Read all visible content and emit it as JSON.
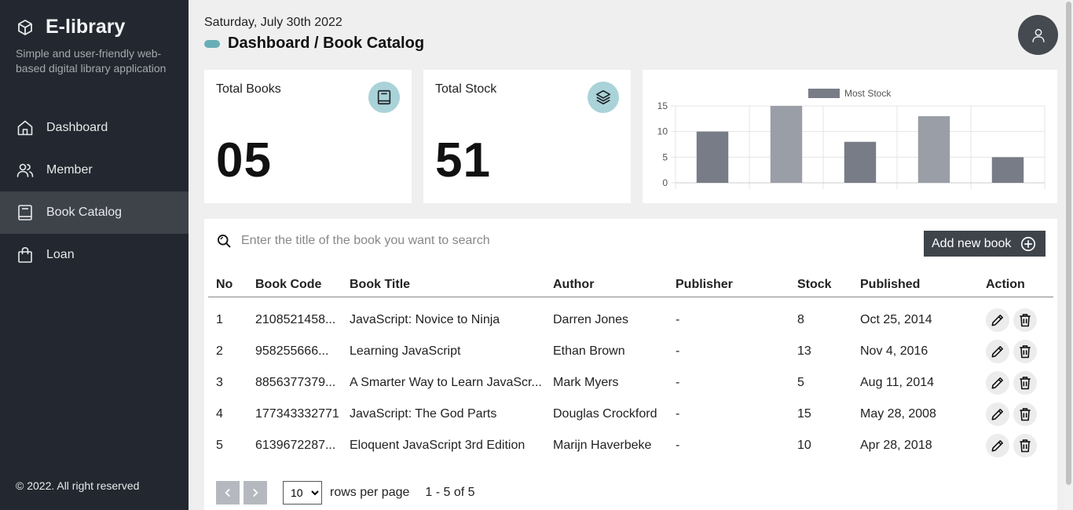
{
  "app": {
    "name": "E-library",
    "subtitle": "Simple and user-friendly web-based digital library application",
    "footer": "© 2022. All right reserved"
  },
  "sidebar": {
    "items": [
      {
        "label": "Dashboard",
        "icon": "home-icon",
        "active": false
      },
      {
        "label": "Member",
        "icon": "users-icon",
        "active": false
      },
      {
        "label": "Book Catalog",
        "icon": "book-icon",
        "active": true
      },
      {
        "label": "Loan",
        "icon": "bag-icon",
        "active": false
      }
    ]
  },
  "header": {
    "date": "Saturday, July 30th 2022",
    "breadcrumb": "Dashboard / Book Catalog"
  },
  "cards": {
    "total_books": {
      "label": "Total Books",
      "value": "05"
    },
    "total_stock": {
      "label": "Total Stock",
      "value": "51"
    }
  },
  "chart_data": {
    "type": "bar",
    "categories": [
      "",
      "",
      "",
      "",
      ""
    ],
    "series": [
      {
        "name": "Most Stock",
        "values": [
          10,
          15,
          8,
          13,
          5
        ]
      }
    ],
    "ylim": [
      0,
      15
    ],
    "yticks": [
      0,
      5,
      10,
      15
    ],
    "legend": "top",
    "colors": [
      "#787c87",
      "#9a9ea6",
      "#787c87",
      "#9a9ea6",
      "#787c87"
    ],
    "grid": true
  },
  "search": {
    "placeholder": "Enter the title of the book you want to search"
  },
  "toolbar": {
    "add_label": "Add new book"
  },
  "table": {
    "headers": {
      "no": "No",
      "code": "Book Code",
      "title": "Book Title",
      "author": "Author",
      "publisher": "Publisher",
      "stock": "Stock",
      "published": "Published",
      "action": "Action"
    },
    "rows": [
      {
        "no": "1",
        "code": "2108521458...",
        "title": "JavaScript: Novice to Ninja",
        "author": "Darren Jones",
        "publisher": "-",
        "stock": "8",
        "published": "Oct 25, 2014"
      },
      {
        "no": "2",
        "code": "958255666...",
        "title": "Learning JavaScript",
        "author": "Ethan Brown",
        "publisher": "-",
        "stock": "13",
        "published": "Nov 4, 2016"
      },
      {
        "no": "3",
        "code": "8856377379...",
        "title": "A Smarter Way to Learn JavaScr...",
        "author": "Mark Myers",
        "publisher": "-",
        "stock": "5",
        "published": "Aug 11, 2014"
      },
      {
        "no": "4",
        "code": "177343332771",
        "title": "JavaScript: The God Parts",
        "author": "Douglas Crockford",
        "publisher": "-",
        "stock": "15",
        "published": "May 28, 2008"
      },
      {
        "no": "5",
        "code": "6139672287...",
        "title": "Eloquent JavaScript 3rd Edition",
        "author": "Marijn Haverbeke",
        "publisher": "-",
        "stock": "10",
        "published": "Apr 28, 2018"
      }
    ]
  },
  "pagination": {
    "rows_per_page": "10",
    "rows_label": "rows per page",
    "range": "1 - 5 of 5"
  }
}
